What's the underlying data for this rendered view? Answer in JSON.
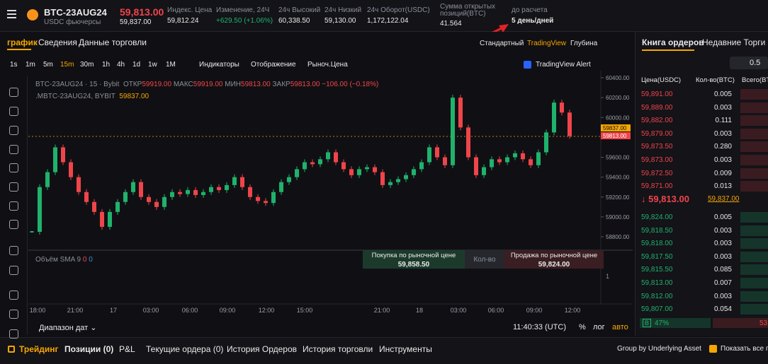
{
  "header": {
    "symbol": "BTC-23AUG24",
    "market": "USDC фьючерсы",
    "last_price": "59,813.00",
    "mark_price": "59,837.00",
    "stats": [
      {
        "label": "Индекс. Цена",
        "value": "59,812.24"
      },
      {
        "label": "Изменение, 24Ч",
        "value": "+629.50 (+1.06%)"
      },
      {
        "label": "24ч Высокий",
        "value": "60,338.50"
      },
      {
        "label": "24ч Низкий",
        "value": "59,130.00"
      },
      {
        "label": "24ч Оборот(USDC)",
        "value": "1,172,122.04"
      },
      {
        "label": "Сумма открытых позиций(BTC)",
        "value": "41.564"
      },
      {
        "label": "до расчета",
        "value": "5 день/дней"
      }
    ]
  },
  "chart_tabs": [
    "график",
    "Сведения",
    "Данные торговли"
  ],
  "views": [
    "Стандартный",
    "TradingView",
    "Глубина"
  ],
  "intervals": [
    "1s",
    "1m",
    "5m",
    "15m",
    "30m",
    "1h",
    "4h",
    "1d",
    "1w",
    "1M"
  ],
  "tools": [
    "Индикаторы",
    "Отображение",
    "Рыноч.Цена"
  ],
  "alert": "TradingView Alert",
  "legend": {
    "title": "BTC-23AUG24 · 15 · Bybit",
    "open_label": "ОТКР",
    "open": "59919.00",
    "high_label": "МАКС",
    "high": "59919.00",
    "low_label": "МИН",
    "low": "59813.00",
    "close_label": "ЗАКР",
    "close": "59813.00",
    "change": "−106.00 (−0.18%)",
    "mark_title": ".MBTC-23AUG24, BYBIT",
    "mark": "59837.00"
  },
  "chart": {
    "closes": [
      58850,
      59300,
      59450,
      59700,
      59550,
      59400,
      59250,
      59150,
      59050,
      58900,
      59050,
      59150,
      59250,
      59350,
      59200,
      59150,
      59100,
      59200,
      59250,
      59230,
      59270,
      59220,
      59250,
      59300,
      59270,
      59320,
      59400,
      59300,
      59200,
      59160,
      59140,
      59250,
      59350,
      59400,
      59480,
      59550,
      59530,
      59580,
      59650,
      59550,
      59480,
      59420,
      59480,
      59500,
      59450,
      59320,
      59350,
      59380,
      59420,
      59480,
      59550,
      59700,
      59600,
      59520,
      60200,
      59900,
      59600,
      59420,
      59500,
      59580,
      59550,
      59600,
      59640,
      59580,
      59520,
      59650,
      59850,
      60150,
      60050,
      59813
    ],
    "price_ticks": [
      {
        "value": 60400,
        "label": "60400.00"
      },
      {
        "value": 60200,
        "label": "60200.00"
      },
      {
        "value": 60000,
        "label": "60000.00"
      },
      {
        "value": 59600,
        "label": "59600.00"
      },
      {
        "value": 59400,
        "label": "59400.00"
      },
      {
        "value": 59200,
        "label": "59200.00"
      },
      {
        "value": 59000,
        "label": "59000.00"
      },
      {
        "value": 58800,
        "label": "58800.00"
      }
    ],
    "mark_tag": "59837.00",
    "last_tag": "59813.00",
    "time_labels": [
      "18:00",
      "21:00",
      "17",
      "03:00",
      "06:00",
      "09:00",
      "12:00",
      "15:00",
      "21:00",
      "18",
      "03:00",
      "06:00",
      "09:00",
      "12:00"
    ],
    "volume_label": "Объём SMA 9",
    "volume_values": [
      "0",
      "0"
    ],
    "volume_tick": "1"
  },
  "trade_panel": {
    "buy_label": "Покупка по рыночной цене",
    "buy_price": "59,858.50",
    "qty": "Кол-во",
    "sell_label": "Продажа по рыночной цене",
    "sell_price": "59,824.00"
  },
  "chart_footer": {
    "range": "Диапазон дат",
    "time": "11:40:33 (UTC)",
    "percent": "%",
    "log": "лог",
    "auto": "авто"
  },
  "order_book": {
    "tabs": [
      "Книга ордеров",
      "Недавние Торги"
    ],
    "step": "0.5",
    "headers": [
      "Цена(USDC)",
      "Кол-во(BTC)",
      "Всего(BTC"
    ],
    "asks": [
      [
        "59,891.00",
        "0.005"
      ],
      [
        "59,889.00",
        "0.003"
      ],
      [
        "59,882.00",
        "0.111"
      ],
      [
        "59,879.00",
        "0.003"
      ],
      [
        "59,873.50",
        "0.280"
      ],
      [
        "59,873.00",
        "0.003"
      ],
      [
        "59,872.50",
        "0.009"
      ],
      [
        "59,871.00",
        "0.013"
      ]
    ],
    "last": "59,813.00",
    "mark": "59,837.00",
    "bids": [
      [
        "59,824.00",
        "0.005"
      ],
      [
        "59,818.50",
        "0.003"
      ],
      [
        "59,818.00",
        "0.003"
      ],
      [
        "59,817.50",
        "0.003"
      ],
      [
        "59,815.50",
        "0.085"
      ],
      [
        "59,813.00",
        "0.007"
      ],
      [
        "59,812.00",
        "0.003"
      ],
      [
        "59,807.00",
        "0.054"
      ]
    ],
    "buy_side": "B",
    "buy_ratio": "47%",
    "sell_ratio": "53"
  },
  "bottom_bar": {
    "trading": "Трейдинг",
    "tabs": [
      "Позиции (0)",
      "P&L",
      "Текущие ордера (0)",
      "История Ордеров",
      "История торговли",
      "Инструменты"
    ],
    "group": "Group by Underlying Asset",
    "show_all": "Показать все по"
  }
}
